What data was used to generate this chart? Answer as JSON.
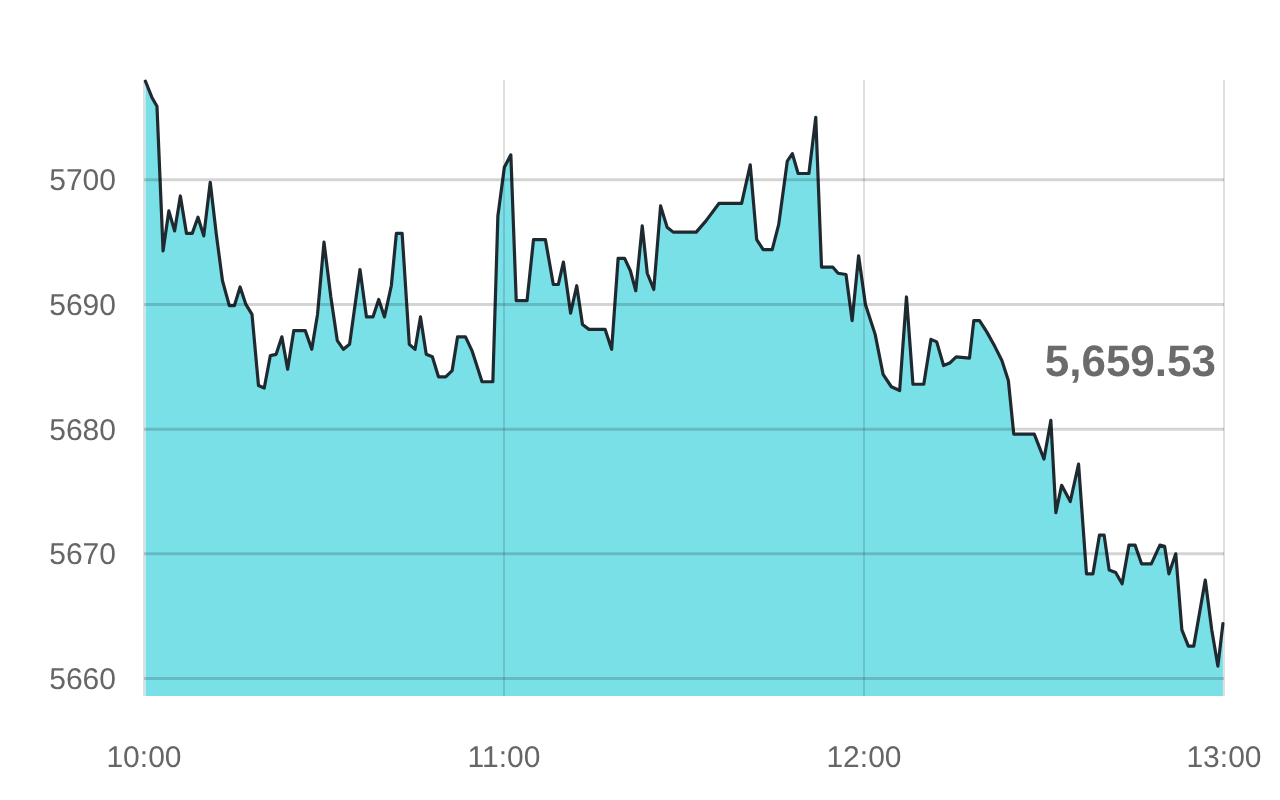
{
  "chart_data": {
    "type": "area",
    "x": [
      10.004,
      10.022,
      10.036,
      10.053,
      10.069,
      10.085,
      10.101,
      10.118,
      10.134,
      10.15,
      10.166,
      10.184,
      10.201,
      10.218,
      10.237,
      10.251,
      10.267,
      10.283,
      10.3,
      10.318,
      10.334,
      10.351,
      10.367,
      10.383,
      10.399,
      10.416,
      10.448,
      10.466,
      10.482,
      10.5,
      10.519,
      10.537,
      10.554,
      10.571,
      10.6,
      10.618,
      10.636,
      10.652,
      10.668,
      10.687,
      10.701,
      10.717,
      10.737,
      10.753,
      10.768,
      10.784,
      10.801,
      10.818,
      10.838,
      10.856,
      10.871,
      10.893,
      10.911,
      10.939,
      10.969,
      10.983,
      11.001,
      11.019,
      11.034,
      11.064,
      11.082,
      11.115,
      11.137,
      11.151,
      11.165,
      11.185,
      11.202,
      11.218,
      11.236,
      11.281,
      11.299,
      11.317,
      11.335,
      11.351,
      11.366,
      11.384,
      11.398,
      11.416,
      11.435,
      11.453,
      11.47,
      11.534,
      11.561,
      11.597,
      11.66,
      11.684,
      11.702,
      11.72,
      11.745,
      11.763,
      11.787,
      11.801,
      11.817,
      11.847,
      11.866,
      11.882,
      11.913,
      11.928,
      11.95,
      11.967,
      11.985,
      12.004,
      12.031,
      12.053,
      12.076,
      12.099,
      12.118,
      12.136,
      12.166,
      12.186,
      12.202,
      12.221,
      12.238,
      12.256,
      12.293,
      12.305,
      12.321,
      12.341,
      12.364,
      12.383,
      12.401,
      12.416,
      12.473,
      12.5,
      12.519,
      12.533,
      12.549,
      12.573,
      12.596,
      12.618,
      12.636,
      12.654,
      12.667,
      12.681,
      12.699,
      12.717,
      12.736,
      12.753,
      12.771,
      12.798,
      12.822,
      12.835,
      12.847,
      12.866,
      12.883,
      12.901,
      12.916,
      12.948,
      12.966,
      12.983,
      12.997
    ],
    "series": [
      {
        "color": "#7ae0e8",
        "values": [
          5707.9,
          5706.6,
          5705.9,
          5694.3,
          5697.5,
          5695.9,
          5698.7,
          5695.7,
          5695.7,
          5697.0,
          5695.5,
          5699.8,
          5695.6,
          5691.9,
          5689.9,
          5689.9,
          5691.4,
          5690.0,
          5689.2,
          5683.5,
          5683.3,
          5685.9,
          5686.0,
          5687.4,
          5684.8,
          5687.9,
          5687.9,
          5686.4,
          5689.2,
          5695.0,
          5690.6,
          5687.1,
          5686.4,
          5686.8,
          5692.8,
          5689.0,
          5689.0,
          5690.4,
          5689.0,
          5691.5,
          5695.7,
          5695.7,
          5686.8,
          5686.4,
          5689.0,
          5686.0,
          5685.8,
          5684.2,
          5684.2,
          5684.7,
          5687.4,
          5687.4,
          5686.3,
          5683.8,
          5683.8,
          5697.1,
          5701.0,
          5702.0,
          5690.3,
          5690.3,
          5695.2,
          5695.2,
          5691.6,
          5691.6,
          5693.4,
          5689.3,
          5691.5,
          5688.4,
          5688.0,
          5688.0,
          5686.4,
          5693.7,
          5693.7,
          5692.7,
          5691.1,
          5696.3,
          5692.5,
          5691.2,
          5697.9,
          5696.2,
          5695.8,
          5695.8,
          5696.7,
          5698.1,
          5698.1,
          5701.2,
          5695.2,
          5694.4,
          5694.4,
          5696.4,
          5701.5,
          5702.1,
          5700.5,
          5700.5,
          5705.0,
          5693.0,
          5693.0,
          5692.5,
          5692.4,
          5688.7,
          5693.9,
          5690.0,
          5687.6,
          5684.4,
          5683.4,
          5683.1,
          5690.6,
          5683.6,
          5683.6,
          5687.2,
          5687.0,
          5685.1,
          5685.3,
          5685.8,
          5685.7,
          5688.7,
          5688.7,
          5687.8,
          5686.6,
          5685.5,
          5683.9,
          5679.6,
          5679.6,
          5677.6,
          5680.7,
          5673.3,
          5675.5,
          5674.2,
          5677.2,
          5668.4,
          5668.4,
          5671.5,
          5671.5,
          5668.7,
          5668.5,
          5667.6,
          5670.7,
          5670.7,
          5669.2,
          5669.2,
          5670.7,
          5670.6,
          5668.4,
          5670.0,
          5663.9,
          5662.6,
          5662.6,
          5667.9,
          5663.9,
          5661.0,
          5664.4
        ]
      }
    ],
    "xlim": [
      10,
      13
    ],
    "ylim": [
      5658.6,
      5708
    ],
    "xticks": [
      {
        "value": 10,
        "label": "10:00"
      },
      {
        "value": 11,
        "label": "11:00"
      },
      {
        "value": 12,
        "label": "12:00"
      },
      {
        "value": 13,
        "label": "13:00"
      }
    ],
    "yticks": [
      5660,
      5670,
      5680,
      5690,
      5700
    ],
    "grid": true,
    "annotations": [
      "5,659.53"
    ]
  }
}
